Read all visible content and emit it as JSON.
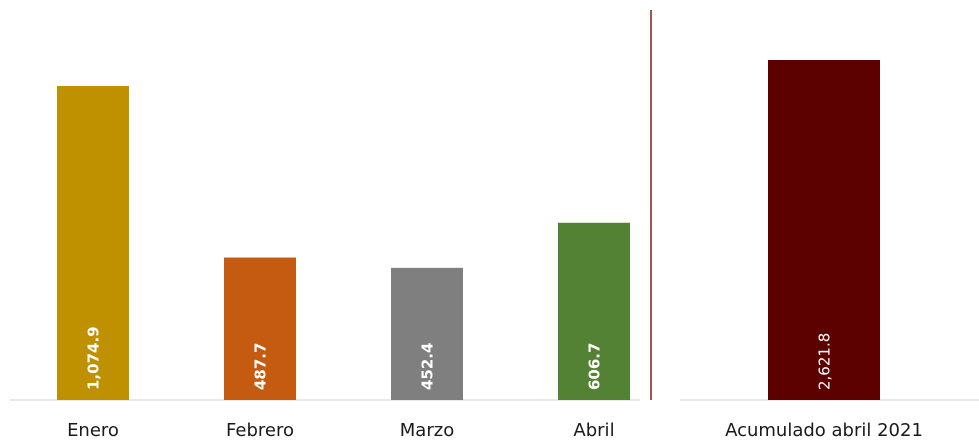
{
  "chart_data": [
    {
      "type": "bar",
      "categories": [
        "Enero",
        "Febrero",
        "Marzo",
        "Abril"
      ],
      "values": [
        1074.9,
        487.7,
        452.4,
        606.7
      ],
      "value_labels": [
        "1,074.9",
        "487.7",
        "452.4",
        "606.7"
      ],
      "colors": [
        "#bf9000",
        "#c55a11",
        "#7f7f7f",
        "#548235"
      ],
      "label_weight": "bold"
    },
    {
      "type": "bar",
      "categories": [
        "Acumulado abril 2021"
      ],
      "values": [
        2621.8
      ],
      "value_labels": [
        "2,621.8"
      ],
      "colors": [
        "#5c0000"
      ],
      "label_weight": "normal"
    }
  ]
}
